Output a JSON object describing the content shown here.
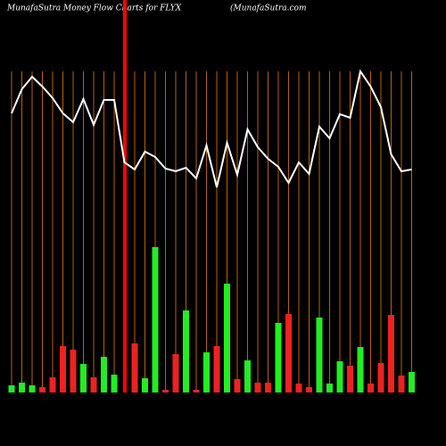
{
  "chart_data": {
    "type": "bar",
    "title": "MunafaSutra  Money Flow  Charts for FLYX",
    "subtitle": "(MunafaSutra.com",
    "categories": [
      null,
      null,
      null,
      null,
      null,
      null,
      null,
      null,
      null,
      null,
      null,
      null,
      null,
      null,
      null,
      null,
      null,
      null,
      null,
      null,
      null,
      null,
      null,
      null,
      null,
      null,
      null,
      null,
      null,
      null,
      null,
      null,
      null,
      null,
      null,
      null,
      null,
      null,
      null,
      null
    ],
    "series": [
      {
        "name": null,
        "type": "bar",
        "values": [
          8,
          11,
          8,
          6,
          17,
          52,
          48,
          32,
          17,
          40,
          20,
          0,
          55,
          16,
          163,
          3,
          43,
          92,
          3,
          45,
          52,
          122,
          15,
          36,
          11,
          11,
          78,
          88,
          10,
          6,
          84,
          10,
          35,
          30,
          51,
          10,
          33,
          87,
          19,
          23
        ],
        "colors": [
          "#22ee22",
          "#22ee22",
          "#22ee22",
          "#ee2222",
          "#ee2222",
          "#ee2222",
          "#ee2222",
          "#22ee22",
          "#ee2222",
          "#22ee22",
          "#22ee22",
          "#ee2222",
          "#ee2222",
          "#22ee22",
          "#22ee22",
          "#ee2222",
          "#ee2222",
          "#22ee22",
          "#ee2222",
          "#22ee22",
          "#ee2222",
          "#22ee22",
          "#ee2222",
          "#22ee22",
          "#ee2222",
          "#ee2222",
          "#22ee22",
          "#ee2222",
          "#ee2222",
          "#ee2222",
          "#22ee22",
          "#22ee22",
          "#22ee22",
          "#ee2222",
          "#22ee22",
          "#ee2222",
          "#ee2222",
          "#ee2222",
          "#ee2222",
          "#22ee22"
        ]
      },
      {
        "name": null,
        "type": "line",
        "color": "#ffffff",
        "values": [
          313,
          340,
          354,
          343,
          330,
          313,
          303,
          329,
          300,
          328,
          328,
          258,
          250,
          270,
          264,
          251,
          248,
          252,
          240,
          277,
          230,
          280,
          244,
          295,
          275,
          262,
          253,
          235,
          258,
          245,
          298,
          285,
          312,
          308,
          360,
          343,
          320,
          267,
          248,
          250
        ]
      }
    ],
    "ylim": [
      0,
      360
    ],
    "grid_color": "#b8620a"
  }
}
